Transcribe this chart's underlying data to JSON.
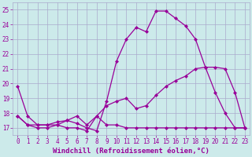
{
  "xlabel": "Windchill (Refroidissement éolien,°C)",
  "xlim": [
    -0.5,
    23.5
  ],
  "ylim": [
    16.5,
    25.5
  ],
  "yticks": [
    17,
    18,
    19,
    20,
    21,
    22,
    23,
    24,
    25
  ],
  "xticks": [
    0,
    1,
    2,
    3,
    4,
    5,
    6,
    7,
    8,
    9,
    10,
    11,
    12,
    13,
    14,
    15,
    16,
    17,
    18,
    19,
    20,
    21,
    22,
    23
  ],
  "bg_color": "#cceaea",
  "grid_color": "#aaaacc",
  "line_color": "#990099",
  "line1_x": [
    0,
    1,
    2,
    3,
    4,
    5,
    6,
    7,
    8,
    9,
    10,
    11,
    12,
    13,
    14,
    15,
    16,
    17,
    18,
    19,
    20,
    21,
    22,
    23
  ],
  "line1_y": [
    19.8,
    17.8,
    17.2,
    17.2,
    17.2,
    17.5,
    17.3,
    17.0,
    16.8,
    18.8,
    21.5,
    23.0,
    23.8,
    23.5,
    24.9,
    24.9,
    24.4,
    23.9,
    23.0,
    21.1,
    19.4,
    18.0,
    17.0,
    17.0
  ],
  "line2_x": [
    0,
    1,
    2,
    3,
    4,
    5,
    6,
    7,
    8,
    9,
    10,
    11,
    12,
    13,
    14,
    15,
    16,
    17,
    18,
    19,
    20,
    21,
    22,
    23
  ],
  "line2_y": [
    17.8,
    17.2,
    17.2,
    17.2,
    17.4,
    17.5,
    17.8,
    17.2,
    17.8,
    18.5,
    18.8,
    19.0,
    18.3,
    18.5,
    19.2,
    19.8,
    20.2,
    20.5,
    21.0,
    21.1,
    21.1,
    21.0,
    19.4,
    17.0
  ],
  "line3_x": [
    0,
    1,
    2,
    3,
    4,
    5,
    6,
    7,
    8,
    9,
    10,
    11,
    12,
    13,
    14,
    15,
    16,
    17,
    18,
    19,
    20,
    21,
    22,
    23
  ],
  "line3_y": [
    17.8,
    17.2,
    17.0,
    17.0,
    17.2,
    17.0,
    17.0,
    16.8,
    17.8,
    17.2,
    17.2,
    17.0,
    17.0,
    17.0,
    17.0,
    17.0,
    17.0,
    17.0,
    17.0,
    17.0,
    17.0,
    17.0,
    17.0,
    17.0
  ],
  "marker": "D",
  "markersize": 2.0,
  "linewidth": 0.9,
  "font_color": "#990099",
  "tick_fontsize": 5.5,
  "xlabel_fontsize": 6.5
}
